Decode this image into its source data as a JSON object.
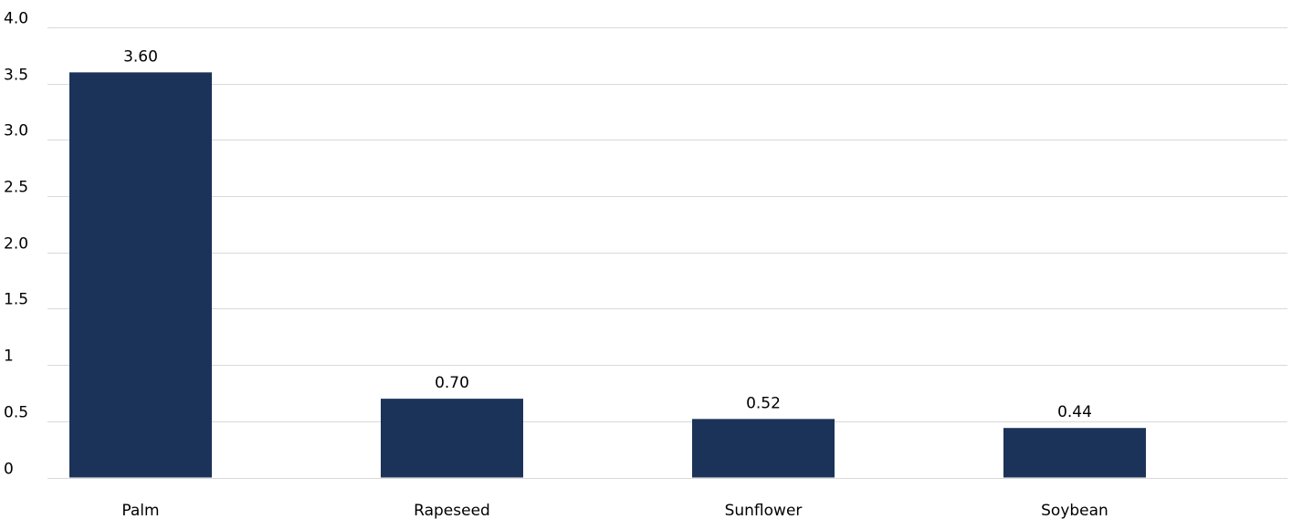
{
  "chart_data": {
    "type": "bar",
    "categories": [
      "Palm",
      "Rapeseed",
      "Sunflower",
      "Soybean"
    ],
    "values": [
      3.6,
      0.7,
      0.52,
      0.44
    ],
    "data_labels": [
      "3.60",
      "0.70",
      "0.52",
      "0.44"
    ],
    "y_ticks": [
      {
        "value": 0,
        "label": "0"
      },
      {
        "value": 0.5,
        "label": "0.5"
      },
      {
        "value": 1,
        "label": "1"
      },
      {
        "value": 1.5,
        "label": "1.5"
      },
      {
        "value": 2,
        "label": "2.0"
      },
      {
        "value": 2.5,
        "label": "2.5"
      },
      {
        "value": 3,
        "label": "3.0"
      },
      {
        "value": 3.5,
        "label": "3.5"
      },
      {
        "value": 4,
        "label": "4.0"
      }
    ],
    "ylim": [
      0,
      4
    ],
    "grid": true,
    "legend": "none",
    "bar_color": "#1c3359",
    "title": "",
    "xlabel": "",
    "ylabel": ""
  }
}
